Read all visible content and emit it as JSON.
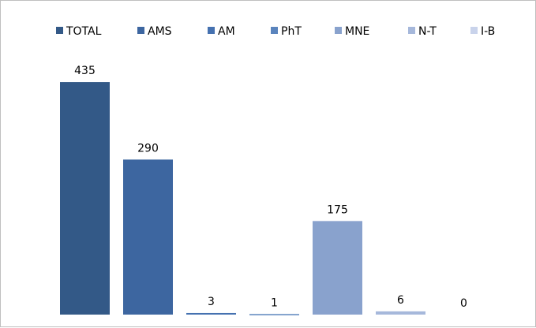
{
  "chart_data": {
    "type": "bar",
    "categories": [
      "TOTAL",
      "AMS",
      "AM",
      "PhT",
      "MNE",
      "N-T",
      "I-B"
    ],
    "values": [
      435,
      290,
      3,
      1,
      175,
      6,
      0
    ],
    "data_labels": [
      "435",
      "290",
      "3",
      "1",
      "175",
      "6",
      "0"
    ],
    "ylim": [
      0,
      500
    ],
    "grid": false,
    "legend_position": "top",
    "title": "",
    "xlabel": "",
    "ylabel": "",
    "colors": [
      "#335987",
      "#3d66a0",
      "#4571b0",
      "#5a84bd",
      "#89a2cd",
      "#a6b8db",
      "#c9d3eb"
    ]
  }
}
